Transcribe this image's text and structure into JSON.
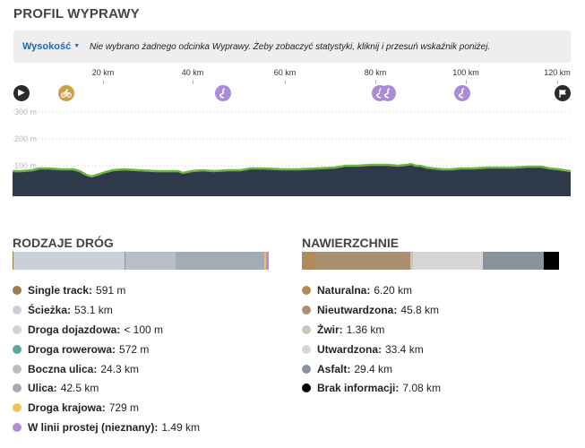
{
  "profile": {
    "title": "PROFIL WYPRAWY",
    "dropdown_label": "Wysokość",
    "message": "Nie wybrano żadnego odcinka Wyprawy. Żeby zobaczyć statystyki, kliknij i przesuń wskaźnik poniżej.",
    "km_ticks": [
      "20 km",
      "40 km",
      "60 km",
      "80 km",
      "100 km",
      "120 km"
    ],
    "altitude_labels": [
      "300 m",
      "200 m",
      "100 m"
    ],
    "colors": {
      "ground": "#2e3a4a",
      "line": "#6db33f"
    }
  },
  "waypoints": [
    {
      "type": "start",
      "icon": "play-icon"
    },
    {
      "type": "bike",
      "icon": "bike-icon"
    },
    {
      "type": "highlight",
      "icon": "road-icon"
    },
    {
      "type": "highlight",
      "icon": "road-icon"
    },
    {
      "type": "highlight",
      "icon": "road-icon"
    },
    {
      "type": "highlight",
      "icon": "road-icon"
    },
    {
      "type": "end",
      "icon": "flag-icon"
    }
  ],
  "road_types": {
    "title": "RODZAJE DRÓG",
    "items": [
      {
        "label": "Single track:",
        "value": "591 m",
        "color": "#9c7c4e",
        "share": 0.0045
      },
      {
        "label": "Ścieżka:",
        "value": "53.1 km",
        "color": "#c9d0d8",
        "share": 0.412
      },
      {
        "label": "Droga dojazdowa:",
        "value": "< 100 m",
        "color": "#d0d4d8",
        "share": 0.0007
      },
      {
        "label": "Droga rowerowa:",
        "value": "572 m",
        "color": "#5ba9a0",
        "share": 0.0044
      },
      {
        "label": "Boczna ulica:",
        "value": "24.3 km",
        "color": "#b8bec6",
        "share": 0.1886
      },
      {
        "label": "Ulica:",
        "value": "42.5 km",
        "color": "#a2abb6",
        "share": 0.3298
      },
      {
        "label": "Droga krajowa:",
        "value": "729 m",
        "color": "#f0c35a",
        "share": 0.0057
      },
      {
        "label": "W linii prostej (nieznany):",
        "value": "1.49 km",
        "color": "#b98ad8",
        "share": 0.0116
      }
    ]
  },
  "surfaces": {
    "title": "NAWIERZCHNIE",
    "items": [
      {
        "label": "Naturalna:",
        "value": "6.20 km",
        "color": "#b08a57",
        "share": 0.0481
      },
      {
        "label": "Nieutwardzona:",
        "value": "45.8 km",
        "color": "#aa8f6d",
        "share": 0.3554
      },
      {
        "label": "Żwir:",
        "value": "1.36 km",
        "color": "#cbc5b8",
        "share": 0.0106
      },
      {
        "label": "Utwardzona:",
        "value": "33.4 km",
        "color": "#d6d6d6",
        "share": 0.2592
      },
      {
        "label": "Asfalt:",
        "value": "29.4 km",
        "color": "#8a929d",
        "share": 0.2281
      },
      {
        "label": "Brak informacji:",
        "value": "7.08 km",
        "color": "#000000",
        "share": 0.0549
      }
    ]
  }
}
